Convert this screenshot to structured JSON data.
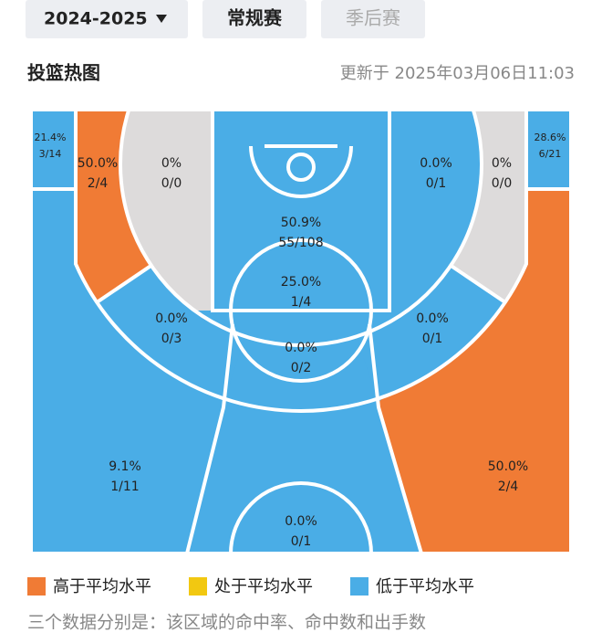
{
  "tabs": {
    "season": "2024-2025",
    "regular": "常规赛",
    "playoffs": "季后赛"
  },
  "header": {
    "title": "投篮热图",
    "updated": "更新于 2025年03月06日11:03"
  },
  "zones": [
    {
      "pct": "21.4%",
      "shots": "3/14",
      "color": "#4aade6"
    },
    {
      "pct": "28.6%",
      "shots": "6/21",
      "color": "#4aade6"
    },
    {
      "pct": "50.0%",
      "shots": "2/4",
      "color": "#f07b35"
    },
    {
      "pct": "0%",
      "shots": "0/0",
      "color": "#dddbdb"
    },
    {
      "pct": "50.9%",
      "shots": "55/108",
      "color": "#4aade6"
    },
    {
      "pct": "0.0%",
      "shots": "0/1",
      "color": "#4aade6"
    },
    {
      "pct": "0%",
      "shots": "0/0",
      "color": "#dddbdb"
    },
    {
      "pct": "25.0%",
      "shots": "1/4",
      "color": "#4aade6"
    },
    {
      "pct": "0.0%",
      "shots": "0/3",
      "color": "#4aade6"
    },
    {
      "pct": "0.0%",
      "shots": "0/2",
      "color": "#4aade6"
    },
    {
      "pct": "0.0%",
      "shots": "0/1",
      "color": "#4aade6"
    },
    {
      "pct": "9.1%",
      "shots": "1/11",
      "color": "#4aade6"
    },
    {
      "pct": "50.0%",
      "shots": "2/4",
      "color": "#f07b35"
    },
    {
      "pct": "0.0%",
      "shots": "0/1",
      "color": "#4aade6"
    }
  ],
  "legend": [
    {
      "label": "高于平均水平",
      "color": "#f07b35"
    },
    {
      "label": "处于平均水平",
      "color": "#f2c811"
    },
    {
      "label": "低于平均水平",
      "color": "#4aade6"
    }
  ],
  "note": "三个数据分别是：该区域的命中率、命中数和出手数"
}
